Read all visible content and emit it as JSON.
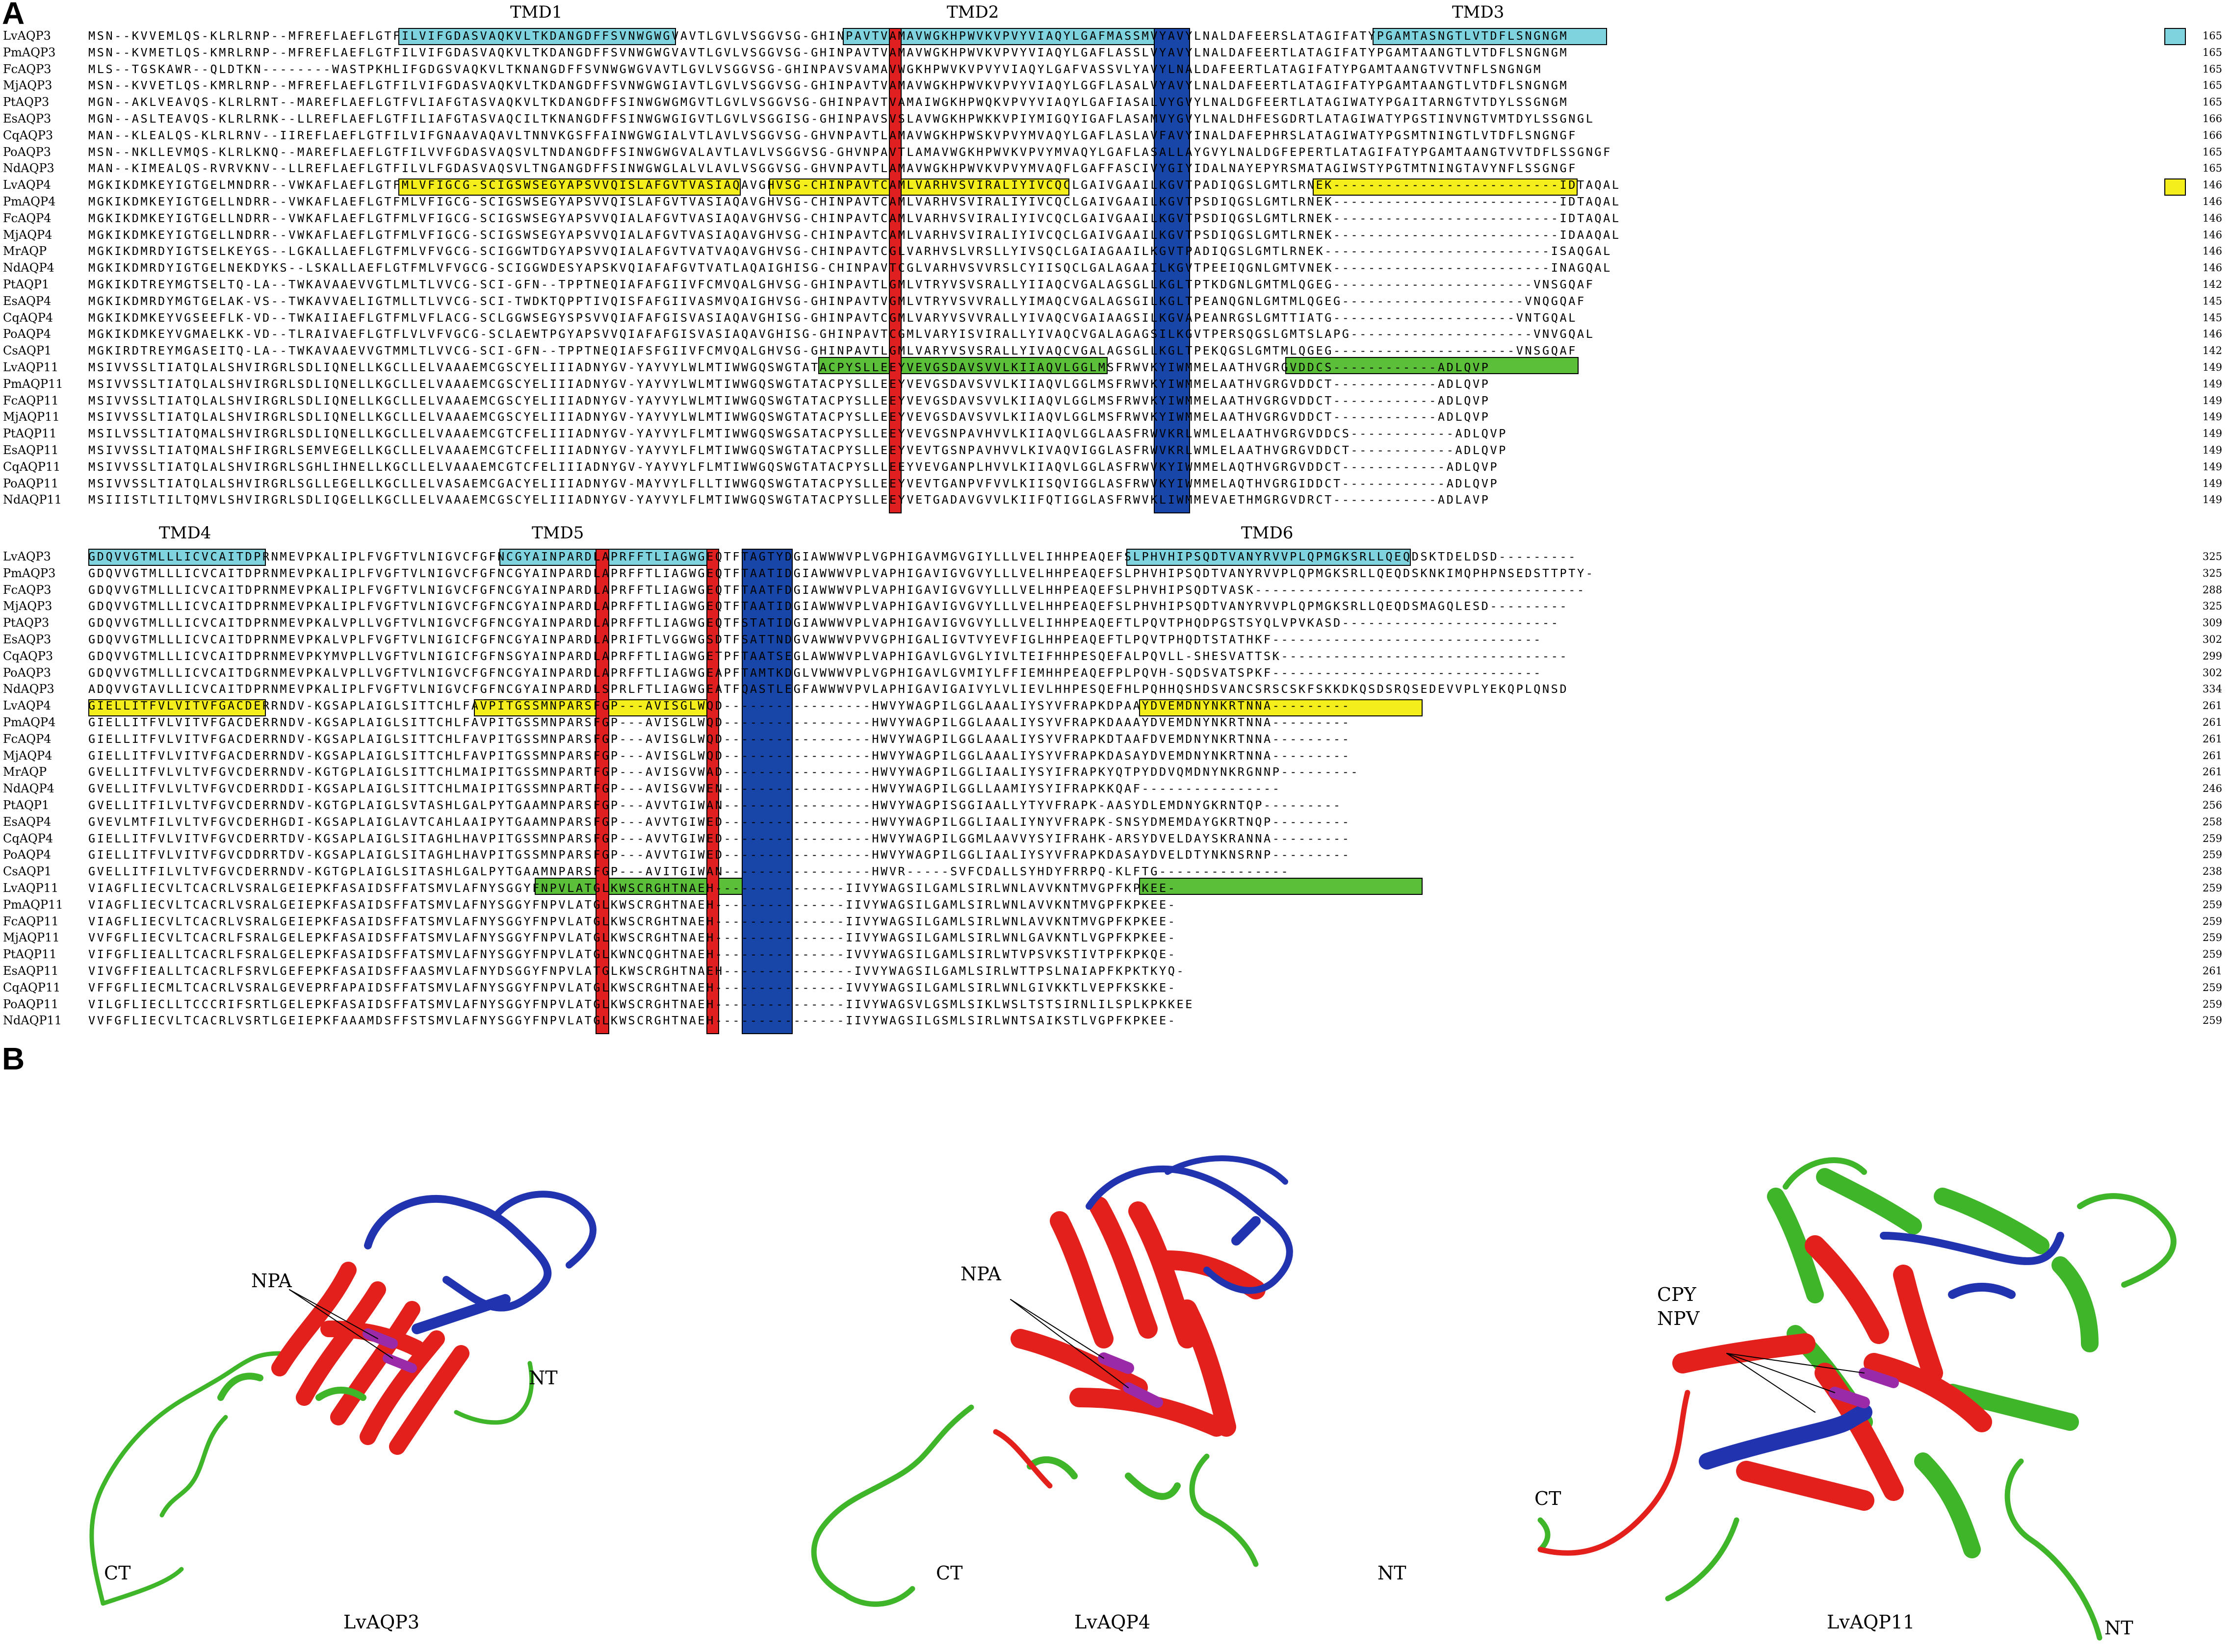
{
  "panels": {
    "a": "A",
    "b": "B"
  },
  "block1": {
    "tmd_labels": [
      "TMD1",
      "TMD2",
      "TMD3"
    ],
    "rows": [
      {
        "name": "LvAQP3",
        "seq": "MSN--KVVEMLQS-KLRLRNP--MFREFLAEFLGTFILVIFGDASVAQKVLTKDANGDFFSVNWGWGVAVTLGVLVSGGVSG-GHINPAVTVAMAVWGKHPWVKVPVYVIAQYLGAFMASSMVYAVYLNALDAFEERSLATAGIFATYPGAMTASNGTLVTDFLSNGNGM",
        "len": "165"
      },
      {
        "name": "PmAQP3",
        "seq": "MSN--KVMETLQS-KMRLRNP--MFREFLAEFLGTFILVIFGDASVAQKVLTKDANGDFFSVNWGWGVAVTLGVLVSGGVSG-GHINPAVTVAMAVWGKHPWVKVPVYVIAQYLGAFLASSLVYAVYLNALDAFEERTLATAGIFATYPGAMTAANGTLVTDFLSNGNGM",
        "len": "165"
      },
      {
        "name": "FcAQP3",
        "seq": "MLS--TGSKAWR--QLDTKN--------WASTPKHLIFGDGSVAQKVLTKNANGDFFSVNWGWGVAVTLGVLVSGGVSG-GHINPAVSVAMAVWGKHPWVKVPVYVIAQYLGAFVASSVLYAVYLNALDAFEERTLATAGIFATYPGAMTAANGTVVTNFLSNGNGM",
        "len": "165"
      },
      {
        "name": "MjAQP3",
        "seq": "MSN--KVVETLQS-KMRLRNP--MFREFLAEFLGTFILVIFGDASVAQKVLTKDANGDFFSVNWGWGIAVTLGVLVSGGVSG-GHINPAVTVAMAVWGKHPWVKVPVYVIAQYLGGFLASALVYAVYLNALDAFEERTLATAGIFATYPGAMTAANGTLVTDFLSNGNGM",
        "len": "165"
      },
      {
        "name": "PtAQP3",
        "seq": "MGN--AKLVEAVQS-KLRLRNT--MAREFLAEFLGTFVLIAFGTASVAQKVLTKDANGDFFSINWGWGMGVTLGVLVSGGVSG-GHINPAVTVAMAIWGKHPWQKVPVYVIAQYLGAFIASALVYGVYLNALDGFEERTLATAGIWATYPGAITARNGTVTDYLSSGNGM",
        "len": "165"
      },
      {
        "name": "EsAQP3",
        "seq": "MGN--ASLTEAVQS-KLRLRNK--LLREFLAEFLGTFILIAFGTASVAQCILTKNANGDFFSINWGWGIGVTLGVLVSGGISG-GHINPAVSVSLAVWGKHPWKKVPIYMIGQYIGAFLASAMVYGVYLNALDHFESGDRTLATAGIWATYPGSTINVNGTVMTDYLSSGNGL",
        "len": "166"
      },
      {
        "name": "CqAQP3",
        "seq": "MAN--KLEALQS-KLRLRNV--IIREFLAEFLGTFILVIFGNAAVAQAVLTNNVKGSFFAINWGWGIALVTLAVLVSGGVSG-GHVNPAVTLAMAVWGKHPWSKVPVYMVAQYLGAFLASLAVFAVYINALDAFEPHRSLATAGIWATYPGSMTNINGTLVTDFLSNGNGF",
        "len": "166"
      },
      {
        "name": "PoAQP3",
        "seq": "MSN--NKLLEVMQS-KLRLKNQ--MAREFLAEFLGTFILVVFGDASVAQSVLTNDANGDFFSINWGWGVALAVTLAVLVSGGVSG-GHVNPAVTLAMAVWGKHPWVKVPVYMVAQYLGAFLASALLAYGVYLNALDGFEPERTLATAGIFATYPGAMTAANGTVVTDFLSSGNGF",
        "len": "165"
      },
      {
        "name": "NdAQP3",
        "seq": "MAN--KIMEALQS-RVRVKNV--LLREFLAEFLGTFILVLFGDASVAQSVLTNGANGDFFSINWGWGLALVLAVLVSGGVSG-GHVNPAVTLAMAVWGKHPWVKVPVYMVAQFLGAFFASCIVYGIYIDALNAYEPYRSMATAGIWSTYPGTMTNINGTAVYNFLSSGNGF",
        "len": "165"
      },
      {
        "name": "LvAQP4",
        "seq": "MGKIKDMKEYIGTGELMNDRR--VWKAFLAEFLGTFMLVFIGCG-SCIGSWSEGYAPSVVQISLAFGVTVASIAQAVGHVSG-CHINPAVTCAMLVARHVSVIRALIYIVCQCLGAIVGAAILKGVTPADIQGSLGMTLRNEK--------------------------IDTAQAL",
        "len": "146"
      },
      {
        "name": "PmAQP4",
        "seq": "MGKIKDMKEYIGTGELLNDRR--VWKAFLAEFLGTFMLVFIGCG-SCIGSWSEGYAPSVVQISLAFGVTVASIAQAVGHVSG-CHINPAVTCAMLVARHVSVIRALIYIVCQCLGAIVGAAILKGVTPSDIQGSLGMTLRNEK--------------------------IDTAQAL",
        "len": "146"
      },
      {
        "name": "FcAQP4",
        "seq": "MGKIKDMKEYIGTGELLNDRR--VWKAFLAEFLGTFMLVFIGCG-SCIGSWSEGYAPSVVQIALAFGVTVASIAQAVGHVSG-CHINPAVTCAMLVARHVSVIRALIYIVCQCLGAIVGAAILKGVTPSDIQGSLGMTLRNEK--------------------------IDTAQAL",
        "len": "146"
      },
      {
        "name": "MjAQP4",
        "seq": "MGKIKDMKEYIGTGELLNDRR--VWKAFLAEFLGTFMLVFIGCG-SCIGSWSEGYAPSVVQIALAFGVTVASIAQAVGHVSG-CHINPAVTCAMLVARHVSVIRALIYIVCQCLGAIVGAAILKGVTPSDIQGSLGMTLRNEK--------------------------IDAAQAL",
        "len": "146"
      },
      {
        "name": "MrAQP",
        "seq": "MGKIKDMRDYIGTSELKEYGS--LGKALLAEFLGTFMLVFVGCG-SCIGGWTDGYAPSVVQIALAFGVTVATVAQAVGHVSG-CHINPAVTCGLVARHVSLVRSLLYIVSQCLGAIAGAAILKGVTPADIQGSLGMTLRNEK--------------------------ISAQGAL",
        "len": "146"
      },
      {
        "name": "NdAQP4",
        "seq": "MGKIKDMRDYIGTGELNEKDYKS--LSKALLAEFLGTFMLVFVGCG-SCIGGWDESYAPSKVQIAFAFGVTVATLAQAIGHISG-CHINPAVTCGLVARHVSVVRSLCYIISQCLGALAGAAILKGVTPEEIQGNLGMTVNEK-------------------------INAGQAL",
        "len": "146"
      },
      {
        "name": "PtAQP1",
        "seq": "MGKIKDTREYMGTSELTQ-LA--TWKAVAAEVVGTLMLTLVVCG-SCI-GFN--TPPTNEQIAFAFGIIVFCMVQALGHVSG-GHINPAVTLGMLVTRYVSVSRALLYIIAQCVGALAGSGLLKGLTPTKDGNLGMTMLQGEG-----------------------VNSGQAF",
        "len": "142"
      },
      {
        "name": "EsAQP4",
        "seq": "MGKIKDMRDYMGTGELAK-VS--TWKAVVAELIGTMLLTLVVCG-SCI-TWDKTQPPTIVQISFAFGIIVASMVQAIGHVSG-GHINPAVTVGMLVTRYVSVVRALLYIMAQCVGALAGSGILKGLTPEANQGNLGMTMLQGEG---------------------VNQGQAF",
        "len": "145"
      },
      {
        "name": "CqAQP4",
        "seq": "MGKIKDMKEYVGSEEFLK-VD--TWKAIIAEFLGTFMLVFLACG-SCLGGWSEGYSPSVVQIAFAFGISVASIAQAVGHISG-GHINPAVTCGMLVARYVSVVRALLYIVAQCVGAIAAGSILKGVAPEANRGSLGMTTIATG---------------------VNTGQAL",
        "len": "145"
      },
      {
        "name": "PoAQP4",
        "seq": "MGKIKDMKEYVGMAELKK-VD--TLRAIVAEFLGTFLVLVFVGCG-SCLAEWTPGYAPSVVQIAFAFGISVASIAQAVGHISG-GHINPAVTCGMLVARYISVIRALLYIVAQCVGALAGAGSILKGVTPERSQGSLGMTSLAPG---------------------VNVGQAL",
        "len": "146"
      },
      {
        "name": "CsAQP1",
        "seq": "MGKIRDTREYMGASEITQ-LA--TWKAVAAEVVGTMMLTLVVCG-SCI-GFN--TPPTNEQIAFSFGIIVFCMVQALGHVSG-GHINPAVTLGMLVARYVSVSRALLYIVAQCVGALAGSGLLKGLTPEKQGSLGMTMLQGEG---------------------VNSGQAF",
        "len": "142"
      },
      {
        "name": "LvAQP11",
        "seq": "MSIVVSSLTIATQLALSHVIRGRLSDLIQNELLKGCLLELVAAAEMCGSCYELIIIADNYGV-YAYVYLWLMTIWWGQSWGTATACPYSLLEEYVEVGSDAVSVVLKIIAQVLGGLMSFRWVKYIWMMELAATHVGRGVDDCS------------ADLQVP",
        "len": "149"
      },
      {
        "name": "PmAQP11",
        "seq": "MSIVVSSLTIATQLALSHVIRGRLSDLIQNELLKGCLLELVAAAEMCGSCYELIIIADNYGV-YAYVYLWLMTIWWGQSWGTATACPYSLLEEYVEVGSDAVSVVLKIIAQVLGGLMSFRWVKYIWMMELAATHVGRGVDDCT------------ADLQVP",
        "len": "149"
      },
      {
        "name": "FcAQP11",
        "seq": "MSIVVSSLTIATQLALSHVIRGRLSDLIQNELLKGCLLELVAAAEMCGSCYELIIIADNYGV-YAYVYLWLMTIWWGQSWGTATACPYSLLEEYVEVGSDAVSVVLKIIAQVLGGLMSFRWVKYIWMMELAATHVGRGVDDCT------------ADLQVP",
        "len": "149"
      },
      {
        "name": "MjAQP11",
        "seq": "MSIVVSSLTIATQLALSHVIRGRLSDLIQNELLKGCLLELVAAAEMCGSCYELIIIADNYGV-YAYVYLWLMTIWWGQSWGTATACPYSLLEEYVEVGSDAVSVVLKIIAQVLGGLMSFRWVKYIWMMELAATHVGRGVDDCT------------ADLQVP",
        "len": "149"
      },
      {
        "name": "PtAQP11",
        "seq": "MSILVSSLTIATQMALSHVIRGRLSDLIQNELLKGCLLELVAAAEMCGTCFELIIIADNYGV-YAYVYLFLMTIWWGQSWGSATACPYSLLEEYVEVGSNPAVHVVLKIIAQVLGGLAASFRWVKRLWMLELAATHVGRGVDDCS------------ADLQVP",
        "len": "149"
      },
      {
        "name": "EsAQP11",
        "seq": "MSIVVSSLTIATQMALSHFIRGRLSEMVEGELLKGCLLELVAAAEMCGTCFELIIIADNYGV-YAYVYLFLMTIWWGQSWGTATACPYSLLEEYVEVTGSNPAVHVVLKIVAQVIGGLASFRWVKRLWMLELAATHVGRGVDDCT------------ADLQVP",
        "len": "149"
      },
      {
        "name": "CqAQP11",
        "seq": "MSIVVSSLTIATQLALSHVIRGRLSGHLIHNELLKGCLLELVAAAEMCGTCFELIIIADNYGV-YAYVYLFLMTIWWGQSWGTATACPYSLLEEYVEVGANPLHVVLKIIAQVLGGLASFRWVKYIWMMELAQTHVGRGVDDCT------------ADLQVP",
        "len": "149"
      },
      {
        "name": "PoAQP11",
        "seq": "MSIVVSSLTIATQLALSHVIRGRLSGLLEGELLKGCLLELVASAEMCGACYELIIIADNYGV-MAYVYLFLLTIWWGQSWGTATACPYSLLEEYVEVTGANPVFVVLKIISQVIGGLASFRWVKYIWMMELAQTHVGRGIDDCT------------ADLQVP",
        "len": "149"
      },
      {
        "name": "NdAQP11",
        "seq": "MSIIISTLTILTQMVLSHVIRGRLSDLIQGELLKGCLLELVAAAEMCGSCYELIIIADNYGV-YAYVYLFLMTIWWGQSWGTATACPYSLLEEYVETGADAVGVVLKIIFQTIGGLASFRWVKLIWMMEVAETHMGRGVDRCT------------ADLAVP",
        "len": "149"
      }
    ]
  },
  "block2": {
    "tmd_labels": [
      "TMD4",
      "TMD5",
      "TMD6"
    ],
    "rows": [
      {
        "name": "LvAQP3",
        "seq": "GDQVVGTMLLLICVCAITDPRNMEVPKALIPLFVGFTVLNIGVCFGFNCGYAINPARDLAPRFFTLIAGWGEQTFTAGTYDGIAWWWVPLVGPHIGAVMGVGIYLLLVELIHHPEAQEFSLPHVHIPSQDTVANYRVVPLQPMGKSRLLQEQDSKTDELDSD---------",
        "len": "325"
      },
      {
        "name": "PmAQP3",
        "seq": "GDQVVGTMLLLICVCAITDPRNMEVPKALIPLFVGFTVLNIGVCFGFNCGYAINPARDLAPRFFTLIAGWGEQTFTAATIDGIAWWWVPLVAPHIGAVIGVGVYLLLVELHHPEAQEFSLPHVHIPSQDTVANYRVVPLQPMGKSRLLQEQDSKNKIMQPHPNSEDSTTPTY-",
        "len": "325"
      },
      {
        "name": "FcAQP3",
        "seq": "GDQVVGTMLLLICVCAITDPRNMEVPKALIPLFVGFTVLNIGVCFGFNCGYAINPARDLAPRFFTLIAGWGEQTFTAATFDGIAWWWVPLVAPHIGAVIGVGVYLLLVELHHPEAQEFSLPHVHIPSQDTVASK--------------------------------------",
        "len": "288"
      },
      {
        "name": "MjAQP3",
        "seq": "GDQVVGTMLLLICVCAITDPRNMEVPKALIPLFVGFTVLNIGVCFGFNCGYAINPARDLAPRFFTLIAGWGEQTFTAATIDGIAWWWVPLVAPHIGAVIGVGVYLLLVELHHPEAQEFSLPHVHIPSQDTVANYRVVPLQPMGKSRLLQEQDSMAGQLESD---------",
        "len": "325"
      },
      {
        "name": "PtAQP3",
        "seq": "GDQVVGTMLLLICVCAITDPRNMEVPKALVPLLVGFTVLNIGVCFGFNCGYAINPARDLAPRFFTLIAGWGEQTFSTATIDGIAWWWVPLVAPHIGAVIGVGVYLLLVELIHHPEAQEFTLPQVTPHQDPGSTSYQLVPVKASD-------------------------",
        "len": "309"
      },
      {
        "name": "EsAQP3",
        "seq": "GDQVVGTMLLLICVCAITDPRNMEVPKALVPLFVGFTVLNIGICFGFNCGYAINPARDLAPRIFTLVGGWGSDTFSATTNDGVAWWWVPVVGPHIGALIGVTVYEVFIGLHHPEAQEFTLPQVTPHQDTSTATHKF-------------------------------",
        "len": "302"
      },
      {
        "name": "CqAQP3",
        "seq": "GDQVVGTMLLLICVCAITDPRNMEVPKYMVPLLVGFTVLNIGICFGFNSGYAINPARDLAPRFFTLIAGWGETPFTAATSEGLAWWWVPLVAPHIGAVLGVGLYIVLTEIFHHPESQEFALPQVLL-SHESVATTSK---------------------------------",
        "len": "299"
      },
      {
        "name": "PoAQP3",
        "seq": "GDQVVGTMLLLICVCAITDGRNMEVPKALVPLLVGFTVLNIGVCFGFNCGYAINPARDLAPRFFTLIAGWGEAPFTAMTKDGLVWWWVPLVGPHIGAVLGVMIYLFFIEMHHPEAQEFPLPQVH-SQDSVATSPKF-------------------------------",
        "len": "302"
      },
      {
        "name": "NdAQP3",
        "seq": "ADQVVGTAVLLICVCAITDPRNMEVPKALIPLFVGFTVLNIGVCFGFNCGYAINPARDLSPRLFTLIAGWGEATFQASTLEGFAWWWVPVLAPHIGAVIGAIVYLVLIEVLHHPESQEFHLPQHHQSHDSVANCSRSCSKFSKKDKQSDSRQSEDEVVPLYEKQPLQNSD",
        "len": "334"
      },
      {
        "name": "LvAQP4",
        "seq": "GIELLITFVLVITVFGACDERRNDV-KGSAPLAIGLSITTCHLFAVPITGSSMNPARSFGP---AVISGLWQD-----------------HWVYWAGPILGGLAAALIYSYVFRAPKDPAAYDVEMDNYNKRTNNA---------",
        "len": "261"
      },
      {
        "name": "PmAQP4",
        "seq": "GIELLITFVLVITVFGACDERRNDV-KGSAPLAIGLSITTCHLFAVPITGSSMNPARSFGP---AVISGLWQD-----------------HWVYWAGPILGGLAAALIYSYVFRAPKDAAAYDVEMDNYNKRTNNA---------",
        "len": "261"
      },
      {
        "name": "FcAQP4",
        "seq": "GIELLITFVLVITVFGACDERRNDV-KGSAPLAIGLSITTCHLFAVPITGSSMNPARSFGP---AVISGLWQD-----------------HWVYWAGPILGGLAAALIYSYVFRAPKDTAAFDVEMDNYNKRTNNA---------",
        "len": "261"
      },
      {
        "name": "MjAQP4",
        "seq": "GIELLITFVLVITVFGACDERRNDV-KGSAPLAIGLSITTCHLFAVPITGSSMNPARSFGP---AVISGLWQD-----------------HWVYWAGPILGGLAAALIYSYVFRAPKDASAYDVEMDNYNKRTNNA---------",
        "len": "261"
      },
      {
        "name": "MrAQP",
        "seq": "GVELLITFVLVLTVFGVCDERRNDV-KGTGPLAIGLSITTCHLMAIPITGSSMNPARTFGP---AVISGVWAD-----------------HWVYWAGPILGGLIAALIYSYIFRAPKYQTPYDDVQMDNYNKRGNNP---------",
        "len": "261"
      },
      {
        "name": "NdAQP4",
        "seq": "GVELLITFVLVLTVFGVCDERRDDI-KGSAPLAIGLSITTCHLMAIPITGSSMNPARTFGP---AVISGVWEN-----------------HWVYWAGPILGGLLAAMIYSYIFRAPKKQAF----------------",
        "len": "246"
      },
      {
        "name": "PtAQP1",
        "seq": "GVELLITFILVLTVFGVCDERRNDV-KGTGPLAIGLSVTASHLGALPYTGAAMNPARSFGP---AVVTGIWAN-----------------HWVYWAGPISGGIAALLYTYVFRAPK-AASYDLEMDNYGKRNTQP---------",
        "len": "256"
      },
      {
        "name": "EsAQP4",
        "seq": "GVEVLMTFILVLTVFGVCDERHGDI-KGSAPLAIGLAVTCAHLAAIPYTGAAMNPARSFGP---AVVTGIWED-----------------HWVYWAGPILGGLIAALIYNYVFRAPK-SNSYDMEMDAYGKRTNQP---------",
        "len": "258"
      },
      {
        "name": "CqAQP4",
        "seq": "GIELLITFVLVITVFGVCDERRTDV-KGSAPLAIGLSITAGHLHAVPITGSSMNPARSFGP---AVVTGIWED-----------------HWVYWAGPILGGMLAAVVYSYIFRAHK-ARSYDVELDAYSKRANNA---------",
        "len": "259"
      },
      {
        "name": "PoAQP4",
        "seq": "GIELLITFVLVITVFGVCDDRRTDV-KGSAPLAIGLSITAGHLHAVPITGSSMNPARSFGP---AVVTGIWED-----------------HWVYWAGPILGGLIAALIYSYVFRAPKDASAYDVELDTYNKNSRNP---------",
        "len": "259"
      },
      {
        "name": "CsAQP1",
        "seq": "GVELLITFILVLTVFGVCDERRNDV-KGTGPLAIGLSITASHLGALPYTGAAMNPARSFGP---AVITGIWAN-----------------HWVR-----SVFCDALLSYHDYFRRPQ-KLFTG---------------",
        "len": "238"
      },
      {
        "name": "LvAQP11",
        "seq": "VIAGFLIECVLTCACRLVSRALGEIEPKFASAIDSFFATSMVLAFNYSGGYFNPVLATGLKWSCRGHTNAEH---------------IIVYWAGSILGAMLSIRLWNLAVVKNTMVGPFKPKEE-",
        "len": "259"
      },
      {
        "name": "PmAQP11",
        "seq": "VIAGFLIECVLTCACRLVSRALGEIEPKFASAIDSFFATSMVLAFNYSGGYFNPVLATGLKWSCRGHTNAEH---------------IIVYWAGSILGAMLSIRLWNLAVVKNTMVGPFKPKEE-",
        "len": "259"
      },
      {
        "name": "FcAQP11",
        "seq": "VIAGFLIECVLTCACRLVSRALGEIEPKFASAIDSFFATSMVLAFNYSGGYFNPVLATGLKWSCRGHTNAEH---------------IIVYWAGSILGAMLSIRLWNLAVVKNTMVGPFKPKEE-",
        "len": "259"
      },
      {
        "name": "MjAQP11",
        "seq": "VVFGFLIECVLTCACRLFSRALGELEPKFASAIDSFFATSMVLAFNYSGGYFNPVLATGLKWSCRGHTNAEH---------------IIVYWAGSILGAMLSIRLWNLGAVKNTLVGPFKPKEE-",
        "len": "259"
      },
      {
        "name": "PtAQP11",
        "seq": "VIFGFLIEALLTCACRLFSRALGELEPKFASAIDSFFATSMVLAFNYSGGYFNPVLATGLKWNCQGHTNAEH---------------IVVYWAGSILGAMLSIRLWTVPSVKSTIVTPFKPKQE-",
        "len": "259"
      },
      {
        "name": "EsAQP11",
        "seq": "VIVGFFIEALLTCACRLFSRVLGEFEPKFASAIDSFFAASMVLAFNYDSGGYFNPVLATGLKWSCRGHTNAEH---------------IVVYWAGSILGAMLSIRLWTTPSLNAIAPFKPKTKYQ-",
        "len": "261"
      },
      {
        "name": "CqAQP11",
        "seq": "VFFGFLIECMLTCACRLVSRALGEVEPRFAPAIDSFFATSMVLAFNYSGGYFNPVLATGLKWSCRGHTNAEH---------------IVVYWAGSILGAMLSIRLWNLGIVKKTLVEPFKSKKE-",
        "len": "259"
      },
      {
        "name": "PoAQP11",
        "seq": "VILGFLIECLLTCCCRIFSRTLGELEPKFASAIDSFFATSMVLAFNYSGGYFNPVLATGLKWSCRGHTNAEH---------------IIVYWAGSVLGSMLSIKLWSLTSTSIRNLILSPLKPKKEE",
        "len": "259"
      },
      {
        "name": "NdAQP11",
        "seq": "VVFGFLIECVLTCACRLVSRTLGEIEPKFAAAMDSFFSTSMVLAFNYSGGYFNPVLATGLKWSCRGHTNAEH---------------IIVYWAGSILGSMLSIRLWNTSAIKSTLVGPFKPKEE-",
        "len": "259"
      }
    ]
  },
  "panel_b": {
    "structures": [
      {
        "name": "LvAQP3",
        "pointer": "NPA",
        "ct": "CT",
        "nt": "NT"
      },
      {
        "name": "LvAQP4",
        "pointer": "NPA",
        "ct": "CT",
        "nt": "NT"
      },
      {
        "name": "LvAQP11",
        "pointer": "CPY\nNPV",
        "ct": "CT",
        "nt": "NT"
      }
    ]
  },
  "colors": {
    "tm_aqp3": "#7fd3df",
    "tm_aqp4": "#f3ee1c",
    "tm_aqp11": "#5cbf3a",
    "conserved_red": "#e02020",
    "motif_blue": "#1846a8",
    "helix_red": "#e3201b",
    "loop_blue": "#2233b0",
    "coil_green": "#3fb52a",
    "motif_purple": "#9a2aa8"
  }
}
